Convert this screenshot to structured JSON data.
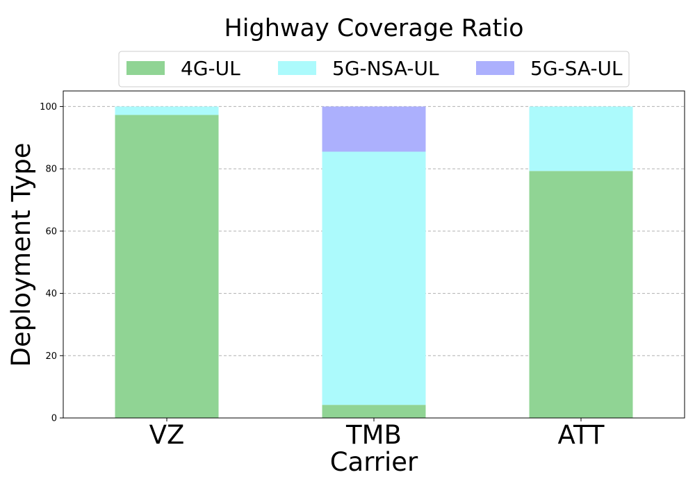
{
  "chart_data": {
    "type": "bar",
    "stacked": true,
    "title": "Highway Coverage Ratio",
    "xlabel": "Carrier",
    "ylabel": "Deployment Type",
    "categories": [
      "VZ",
      "TMB",
      "ATT"
    ],
    "series": [
      {
        "name": "4G-UL",
        "color": "#90d494",
        "values": [
          97.3,
          4.2,
          79.3
        ]
      },
      {
        "name": "5G-NSA-UL",
        "color": "#acfafc",
        "values": [
          2.7,
          81.3,
          20.7
        ]
      },
      {
        "name": "5G-SA-UL",
        "color": "#acb0fd",
        "values": [
          0,
          14.5,
          0
        ]
      }
    ],
    "ylim": [
      0,
      105
    ],
    "yticks": [
      0,
      20,
      40,
      60,
      80,
      100
    ],
    "grid": "horizontal-dashed",
    "legend_position": "top-center"
  }
}
